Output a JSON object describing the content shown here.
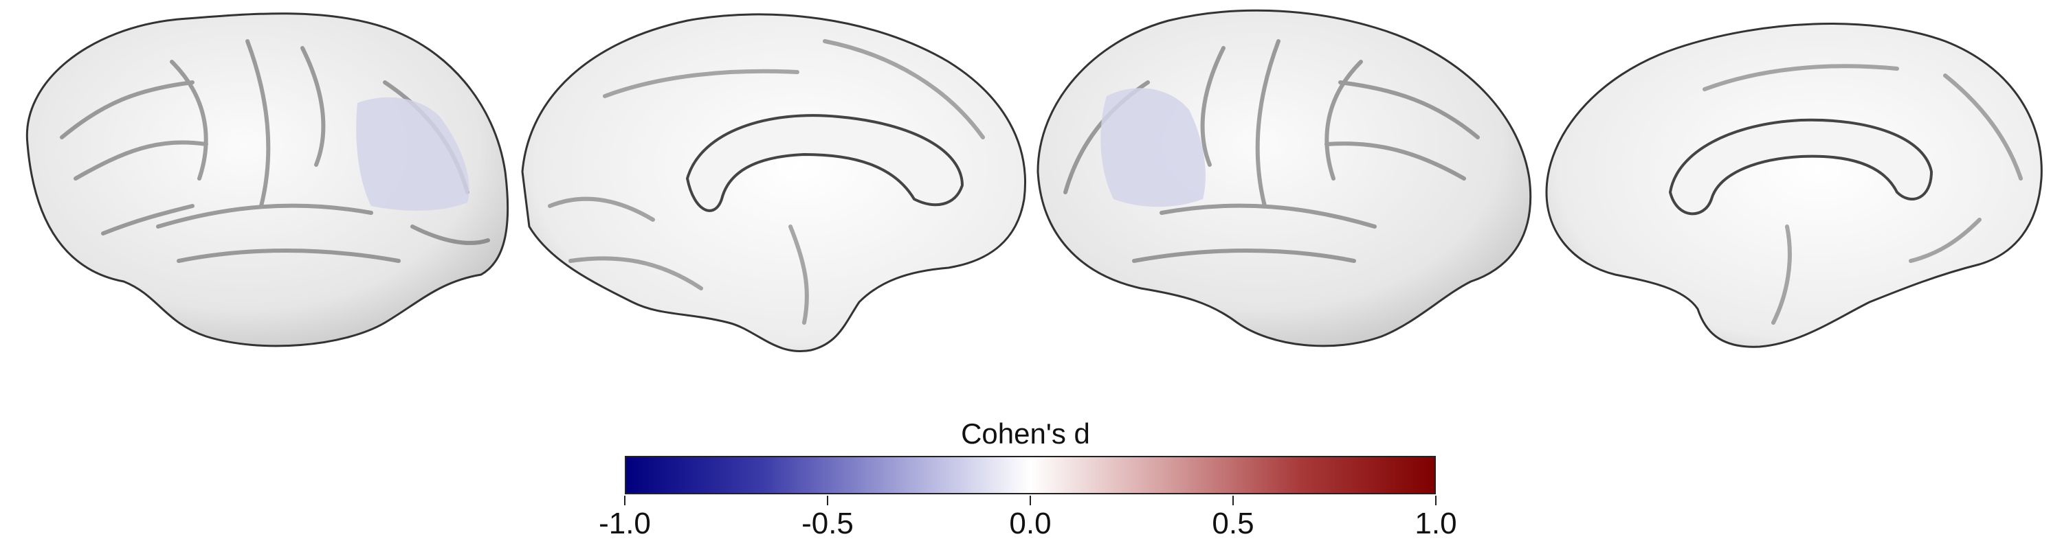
{
  "figure": {
    "views": [
      {
        "name": "left-lateral",
        "highlight": "supramarginal"
      },
      {
        "name": "left-medial",
        "highlight": null
      },
      {
        "name": "right-lateral",
        "highlight": "supramarginal"
      },
      {
        "name": "right-medial",
        "highlight": null
      }
    ],
    "surface_color": "#e8e8e8",
    "highlight_color": "#d4d4ea"
  },
  "colorbar": {
    "title": "Cohen's d",
    "min": -1.0,
    "max": 1.0,
    "ticks": [
      "-1.0",
      "-0.5",
      "0.0",
      "0.5",
      "1.0"
    ],
    "tick_values": [
      -1.0,
      -0.5,
      0.0,
      0.5,
      1.0
    ],
    "colormap": [
      "#00007f",
      "#3a3aa8",
      "#9f9fd6",
      "#ffffff",
      "#d6a0a0",
      "#a83a3a",
      "#7f0000"
    ]
  }
}
